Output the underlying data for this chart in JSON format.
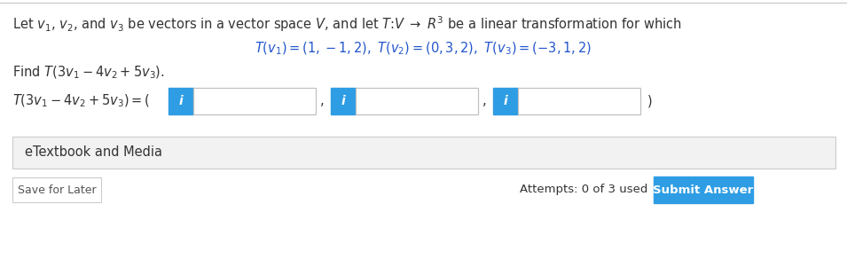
{
  "bg_color": "#ffffff",
  "top_border_color": "#cccccc",
  "line1_full": "Let $\\mathit{v}_1$, $\\mathit{v}_2$, and $\\mathit{v}_3$ be vectors in a vector space $\\mathit{V}$, and let $\\mathit{T}$:$\\mathit{V}$ $\\rightarrow$ $R^3$ be a linear transformation for which",
  "line1_color": "#333333",
  "line2": "$T(\\mathit{v}_1) = (1, -1, 2),\\ T(\\mathit{v}_2) = (0, 3, 2),\\ T(\\mathit{v}_3) = (-3, 1, 2)$",
  "line2_color": "#2255cc",
  "line3": "Find $T(3\\mathit{v}_1 - 4\\mathit{v}_2 + 5\\mathit{v}_3)$.",
  "line3_color": "#333333",
  "label": "$T(3\\mathit{v}_1 - 4\\mathit{v}_2 + 5\\mathit{v}_3) = ($",
  "label_color": "#333333",
  "info_btn_color": "#2e9de4",
  "info_btn_text": "i",
  "input_bg": "#ffffff",
  "input_border": "#c0c0c0",
  "comma_color": "#333333",
  "close_paren_color": "#333333",
  "etextbook_text": "eTextbook and Media",
  "etextbook_bg": "#f2f2f2",
  "etextbook_border": "#cccccc",
  "etextbook_color": "#333333",
  "save_text": "Save for Later",
  "save_border": "#cccccc",
  "save_color": "#555555",
  "attempts_text": "Attempts: 0 of 3 used",
  "attempts_color": "#333333",
  "submit_text": "Submit Answer",
  "submit_bg": "#2e9de4",
  "submit_color": "#ffffff",
  "fs_main": 10.5,
  "fs_small": 9.0,
  "fig_w": 9.55,
  "fig_h": 2.92,
  "dpi": 100
}
